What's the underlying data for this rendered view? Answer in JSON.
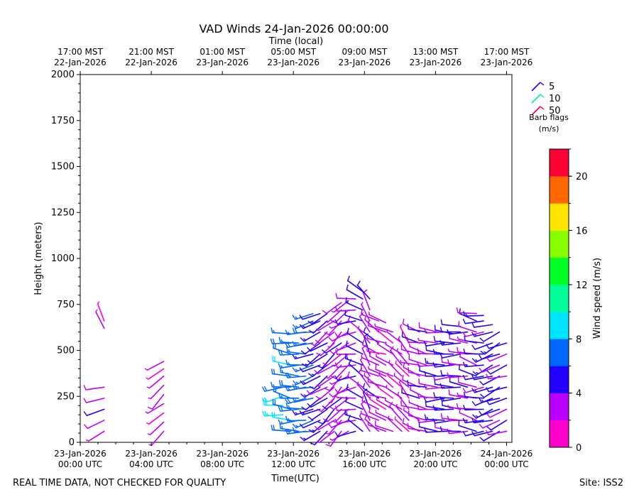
{
  "chart_data": {
    "type": "wind-barb",
    "title": "VAD Winds 24-Jan-2026 00:00:00",
    "top_axis_label": "Time (local)",
    "xlabel": "Time(UTC)",
    "ylabel": "Height (meters)",
    "ylim": [
      0,
      2000
    ],
    "xlim_hours": [
      0,
      24.3
    ],
    "yticks": [
      0,
      250,
      500,
      750,
      1000,
      1250,
      1500,
      1750,
      2000
    ],
    "bottom_ticks": [
      {
        "hour": 0,
        "line1": "23-Jan-2026",
        "line2": "00:00 UTC"
      },
      {
        "hour": 4,
        "line1": "23-Jan-2026",
        "line2": "04:00 UTC"
      },
      {
        "hour": 8,
        "line1": "23-Jan-2026",
        "line2": "08:00 UTC"
      },
      {
        "hour": 12,
        "line1": "23-Jan-2026",
        "line2": "12:00 UTC"
      },
      {
        "hour": 16,
        "line1": "23-Jan-2026",
        "line2": "16:00 UTC"
      },
      {
        "hour": 20,
        "line1": "23-Jan-2026",
        "line2": "20:00 UTC"
      },
      {
        "hour": 24,
        "line1": "24-Jan-2026",
        "line2": "00:00 UTC"
      }
    ],
    "top_ticks": [
      {
        "hour": 0,
        "line1": "17:00 MST",
        "line2": "22-Jan-2026"
      },
      {
        "hour": 4,
        "line1": "21:00 MST",
        "line2": "22-Jan-2026"
      },
      {
        "hour": 8,
        "line1": "01:00 MST",
        "line2": "23-Jan-2026"
      },
      {
        "hour": 12,
        "line1": "05:00 MST",
        "line2": "23-Jan-2026"
      },
      {
        "hour": 16,
        "line1": "09:00 MST",
        "line2": "23-Jan-2026"
      },
      {
        "hour": 20,
        "line1": "13:00 MST",
        "line2": "23-Jan-2026"
      },
      {
        "hour": 24,
        "line1": "17:00 MST",
        "line2": "23-Jan-2026"
      }
    ],
    "barb_legend": {
      "title_line1": "Barb flags",
      "title_line2": "(m/s)",
      "items": [
        {
          "value": "5",
          "color": "#2200ff"
        },
        {
          "value": "10",
          "color": "#00ee99"
        },
        {
          "value": "50",
          "color": "#ff0033"
        }
      ]
    },
    "colorbar": {
      "label": "Wind speed (m/s)",
      "min": 0,
      "max": 22,
      "step": 2,
      "tick_values": [
        0,
        4,
        8,
        12,
        16,
        20
      ],
      "colors": [
        "#ff00cc",
        "#bb00ff",
        "#2200ff",
        "#0066ff",
        "#00e5ff",
        "#00ff99",
        "#00ff22",
        "#88ff00",
        "#ffe600",
        "#ff6600",
        "#ff0033"
      ]
    },
    "profiles": [
      {
        "hour": 1.35,
        "heights": [
          60,
          120,
          180,
          240,
          300
        ],
        "speed": 3.5,
        "dir": 250
      },
      {
        "hour": 1.35,
        "heights": [
          620,
          660
        ],
        "speed": 2.5,
        "dir": 330
      },
      {
        "hour": 4.7,
        "heights": [
          60,
          110,
          160,
          210,
          260,
          310,
          360,
          400,
          440
        ],
        "speed": 2.5,
        "dir": 230
      },
      {
        "hour": 11.4,
        "heights": [
          150,
          200,
          250,
          300
        ],
        "speed": 8.5,
        "dir": 260
      },
      {
        "hour": 11.85,
        "heights": [
          60,
          120,
          180,
          240,
          300,
          360,
          420,
          480,
          540,
          590
        ],
        "speed": 7.5,
        "dir": 280
      },
      {
        "hour": 12.3,
        "heights": [
          60,
          120,
          180,
          240,
          300,
          360,
          420,
          480,
          540
        ],
        "speed": 6.8,
        "dir": 270
      },
      {
        "hour": 12.7,
        "heights": [
          60,
          120,
          180,
          240,
          300,
          360,
          420,
          480,
          540,
          600
        ],
        "speed": 6.8,
        "dir": 265
      },
      {
        "hour": 13.1,
        "heights": [
          60,
          120,
          180,
          240,
          300,
          360,
          420,
          480,
          540,
          600,
          660,
          700
        ],
        "speed": 6.5,
        "dir": 255
      },
      {
        "hour": 13.5,
        "heights": [
          60,
          120,
          180,
          240,
          300,
          360,
          420,
          480,
          540,
          600,
          660,
          700
        ],
        "speed": 5,
        "dir": 240
      },
      {
        "hour": 13.9,
        "heights": [
          60,
          120,
          180,
          240,
          300,
          360,
          420,
          480,
          540,
          600,
          660,
          700
        ],
        "speed": 4.5,
        "dir": 235
      },
      {
        "hour": 14.3,
        "heights": [
          60,
          120,
          180,
          240,
          300,
          360,
          420,
          480,
          540,
          600,
          660
        ],
        "speed": 3.5,
        "dir": 230
      },
      {
        "hour": 14.7,
        "heights": [
          60,
          120,
          180,
          240,
          300,
          360,
          420,
          480,
          540,
          600,
          660,
          720,
          760
        ],
        "speed": 3.2,
        "dir": 225
      },
      {
        "hour": 15.1,
        "heights": [
          60,
          120,
          180,
          240,
          300,
          360,
          420,
          480,
          540,
          600,
          660,
          720,
          770
        ],
        "speed": 3.0,
        "dir": 235
      },
      {
        "hour": 15.5,
        "heights": [
          60,
          120,
          180,
          240,
          300,
          360,
          420,
          480,
          540,
          600,
          660,
          720,
          780
        ],
        "speed": 3.5,
        "dir": 260
      },
      {
        "hour": 15.9,
        "heights": [
          60,
          120,
          180,
          240,
          300,
          360,
          420,
          480,
          540,
          600,
          660,
          720,
          780,
          820
        ],
        "speed": 4.5,
        "dir": 300
      },
      {
        "hour": 16.3,
        "heights": [
          60,
          120,
          180,
          240,
          300,
          360,
          420,
          480,
          540,
          600,
          660,
          720,
          780
        ],
        "speed": 3.2,
        "dir": 330
      },
      {
        "hour": 16.8,
        "heights": [
          60,
          120,
          180,
          240,
          300,
          360,
          420,
          480,
          540,
          600,
          660
        ],
        "speed": 3.2,
        "dir": 300
      },
      {
        "hour": 17.2,
        "heights": [
          60,
          120,
          180,
          240,
          300,
          360,
          420,
          480,
          540,
          600,
          650
        ],
        "speed": 2.8,
        "dir": 290
      },
      {
        "hour": 17.6,
        "heights": [
          60,
          120,
          180,
          240,
          300,
          360,
          420,
          480,
          540,
          600
        ],
        "speed": 2.5,
        "dir": 300
      },
      {
        "hour": 18.1,
        "heights": [
          60,
          120,
          180,
          240,
          300,
          360,
          420,
          480,
          540
        ],
        "speed": 2.5,
        "dir": 310
      },
      {
        "hour": 18.5,
        "heights": [
          60,
          120,
          180,
          240,
          300,
          360,
          420,
          480,
          540
        ],
        "speed": 2.0,
        "dir": 320
      },
      {
        "hour": 19.1,
        "heights": [
          60,
          120,
          180,
          240,
          300,
          360,
          420,
          480,
          540,
          600
        ],
        "speed": 3.5,
        "dir": 290
      },
      {
        "hour": 19.5,
        "heights": [
          60,
          120,
          180,
          240,
          300,
          360,
          420,
          480,
          540,
          600
        ],
        "speed": 3.5,
        "dir": 285
      },
      {
        "hour": 20.1,
        "heights": [
          60,
          120,
          180,
          240,
          300,
          360,
          420,
          480,
          540,
          600
        ],
        "speed": 3.5,
        "dir": 275
      },
      {
        "hour": 20.5,
        "heights": [
          60,
          120,
          180,
          240,
          300,
          360,
          420,
          480,
          540,
          600
        ],
        "speed": 4.5,
        "dir": 270
      },
      {
        "hour": 21.0,
        "heights": [
          60,
          120,
          180,
          240,
          300,
          360,
          420,
          480,
          540,
          590
        ],
        "speed": 4.5,
        "dir": 270
      },
      {
        "hour": 21.4,
        "heights": [
          60,
          120,
          180,
          240,
          300,
          360,
          420,
          480,
          540,
          600,
          630
        ],
        "speed": 4.5,
        "dir": 270
      },
      {
        "hour": 21.8,
        "heights": [
          60,
          120,
          180,
          240,
          300,
          360,
          420,
          480,
          540,
          600
        ],
        "speed": 3.5,
        "dir": 275
      },
      {
        "hour": 22.3,
        "heights": [
          60,
          120,
          180,
          240,
          300,
          360,
          420,
          480,
          540,
          600,
          660,
          700
        ],
        "speed": 3.5,
        "dir": 285
      },
      {
        "hour": 22.7,
        "heights": [
          60,
          120,
          180,
          240,
          300,
          360,
          420,
          480,
          540,
          600,
          660,
          690
        ],
        "speed": 4.5,
        "dir": 265
      },
      {
        "hour": 23.2,
        "heights": [
          60,
          120,
          180,
          240,
          300,
          360,
          420,
          480,
          540,
          600,
          640
        ],
        "speed": 5,
        "dir": 250
      },
      {
        "hour": 23.6,
        "heights": [
          60,
          120,
          180,
          240,
          300,
          360,
          420,
          480,
          540,
          600
        ],
        "speed": 4.5,
        "dir": 245
      },
      {
        "hour": 24.0,
        "heights": [
          60,
          120,
          180,
          240,
          300,
          360,
          420,
          480,
          540
        ],
        "speed": 4,
        "dir": 250
      }
    ]
  },
  "footer": {
    "left": "REAL TIME DATA, NOT CHECKED FOR QUALITY",
    "right": "Site: ISS2"
  }
}
